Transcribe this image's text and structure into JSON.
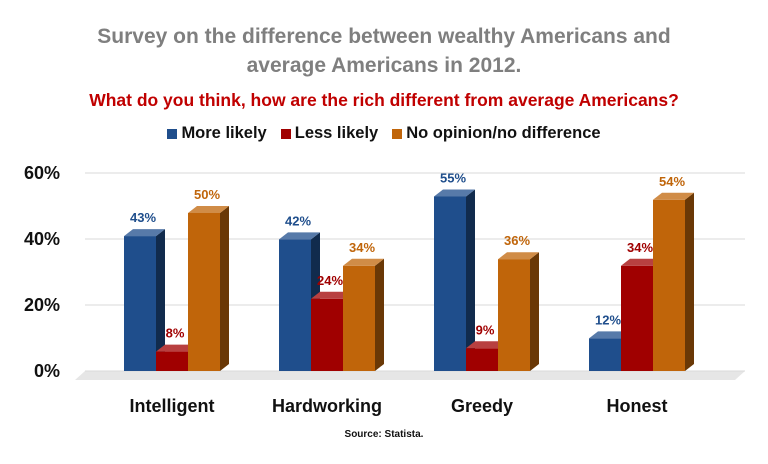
{
  "chart_data": {
    "type": "bar",
    "title": "Survey on the difference between wealthy Americans and average Americans in 2012.",
    "title_lines": [
      "Survey on the difference between wealthy Americans and",
      "average Americans in 2012."
    ],
    "subtitle": "What do you think, how are the rich different from average Americans?",
    "categories": [
      "Intelligent",
      "Hardworking",
      "Greedy",
      "Honest"
    ],
    "series": [
      {
        "name": "More likely",
        "values": [
          43,
          42,
          55,
          12
        ],
        "labels": [
          "43%",
          "42%",
          "55%",
          "12%"
        ],
        "color": "#1f4e8c",
        "label_color": "#1f4e8c"
      },
      {
        "name": "Less likely",
        "values": [
          8,
          24,
          9,
          34
        ],
        "labels": [
          "8%",
          "24%",
          "9%",
          "34%"
        ],
        "color": "#a00000",
        "label_color": "#a00000"
      },
      {
        "name": "No opinion/no difference",
        "values": [
          50,
          34,
          36,
          54
        ],
        "labels": [
          "50%",
          "34%",
          "36%",
          "54%"
        ],
        "color": "#c0650a",
        "label_color": "#c0650a"
      }
    ],
    "yticks": [
      0,
      20,
      40,
      60
    ],
    "ytick_labels": [
      "0%",
      "20%",
      "40%",
      "60%"
    ],
    "ylim": [
      0,
      60
    ],
    "grid": true,
    "legend_position": "top-center",
    "source": "Source: Statista."
  }
}
